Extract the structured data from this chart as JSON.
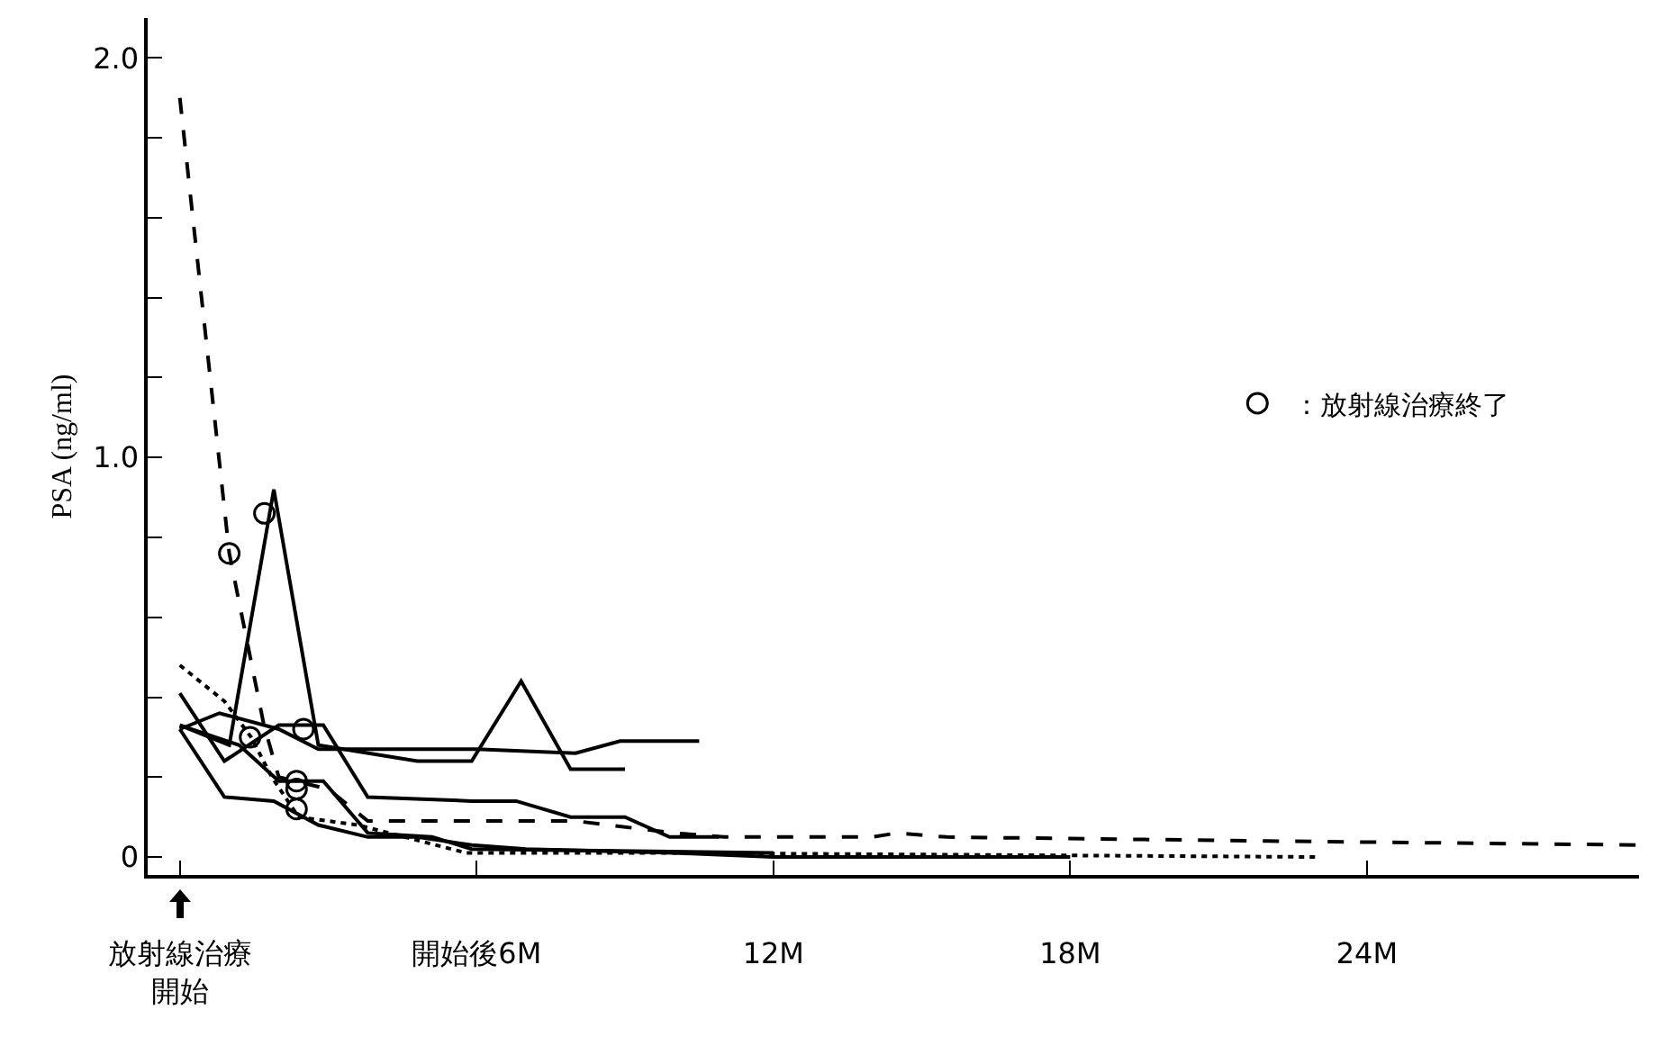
{
  "chart_data": {
    "type": "line",
    "ylabel": "PSA (ng/ml)",
    "xlim": [
      -0.65,
      29.5
    ],
    "ylim": [
      -0.045,
      2.1
    ],
    "xticks": [
      {
        "value": 0,
        "label": "放射線治療開始"
      },
      {
        "value": 6,
        "label": "開始後6M"
      },
      {
        "value": 12,
        "label": "12M"
      },
      {
        "value": 18,
        "label": "18M"
      },
      {
        "value": 24,
        "label": "24M"
      }
    ],
    "yticks": [
      {
        "value": 0,
        "label": "0"
      },
      {
        "value": 0.2,
        "label": null
      },
      {
        "value": 0.4,
        "label": null
      },
      {
        "value": 0.6,
        "label": null
      },
      {
        "value": 0.8,
        "label": null
      },
      {
        "value": 1,
        "label": "1.0"
      },
      {
        "value": 1.2,
        "label": null
      },
      {
        "value": 1.4,
        "label": null
      },
      {
        "value": 1.6,
        "label": null
      },
      {
        "value": 1.8,
        "label": null
      },
      {
        "value": 2,
        "label": "2.0"
      }
    ],
    "grid": false,
    "legend": "right",
    "marker": "none",
    "series": [
      {
        "color": "#000000",
        "line_style": "dashed",
        "x": [
          0,
          1.0,
          1.7,
          2.0,
          3.0,
          3.8,
          8,
          10,
          11,
          12,
          14,
          14.5,
          15.5,
          22,
          29.5
        ],
        "values": [
          1.9,
          0.76,
          0.33,
          0.2,
          0.17,
          0.09,
          0.09,
          0.06,
          0.05,
          0.05,
          0.05,
          0.06,
          0.05,
          0.04,
          0.03
        ]
      },
      {
        "color": "#000000",
        "line_style": "solid",
        "x": [
          0,
          1.0,
          1.9,
          2.8,
          4.8,
          5.9,
          6.9,
          7.9,
          9.0
        ],
        "values": [
          0.33,
          0.28,
          0.92,
          0.28,
          0.24,
          0.24,
          0.44,
          0.22,
          0.22
        ]
      },
      {
        "color": "#000000",
        "line_style": "solid",
        "x": [
          0,
          0.8,
          2.0,
          2.8,
          6,
          8,
          8.9,
          10.5
        ],
        "values": [
          0.32,
          0.36,
          0.32,
          0.27,
          0.27,
          0.26,
          0.29,
          0.29
        ]
      },
      {
        "color": "#000000",
        "line_style": "solid",
        "x": [
          0,
          0.9,
          2.0,
          2.9,
          3.8,
          5.9,
          6.8,
          7.9,
          9.0,
          9.9,
          10.9
        ],
        "values": [
          0.41,
          0.24,
          0.33,
          0.33,
          0.15,
          0.14,
          0.14,
          0.1,
          0.1,
          0.05,
          0.05
        ]
      },
      {
        "color": "#000000",
        "line_style": "solid",
        "x": [
          0,
          0.9,
          1.9,
          2.8,
          3.8,
          4.8,
          5.9,
          7,
          10,
          12,
          18
        ],
        "values": [
          0.32,
          0.15,
          0.14,
          0.08,
          0.05,
          0.05,
          0.03,
          0.02,
          0.01,
          0.0,
          0.0
        ]
      },
      {
        "color": "#000000",
        "line_style": "solid",
        "x": [
          0,
          1.2,
          2.0,
          2.9,
          3.8,
          5.1,
          5.9,
          12
        ],
        "values": [
          0.33,
          0.28,
          0.19,
          0.19,
          0.06,
          0.05,
          0.02,
          0.01
        ]
      },
      {
        "color": "#000000",
        "line_style": "dotted",
        "x": [
          0,
          0.9,
          1.44,
          1.86,
          2.4,
          3.6,
          5.8,
          10,
          23
        ],
        "values": [
          0.48,
          0.39,
          0.3,
          0.2,
          0.1,
          0.08,
          0.01,
          0.01,
          0.0
        ]
      },
      {
        "name": "：放射線治療終了",
        "type": "scatter",
        "marker": "circle",
        "color": "#000000",
        "x": [
          1.0,
          1.71,
          1.42,
          2.5,
          2.36,
          2.36,
          2.36
        ],
        "values": [
          0.76,
          0.86,
          0.3,
          0.32,
          0.19,
          0.17,
          0.12
        ]
      }
    ]
  }
}
